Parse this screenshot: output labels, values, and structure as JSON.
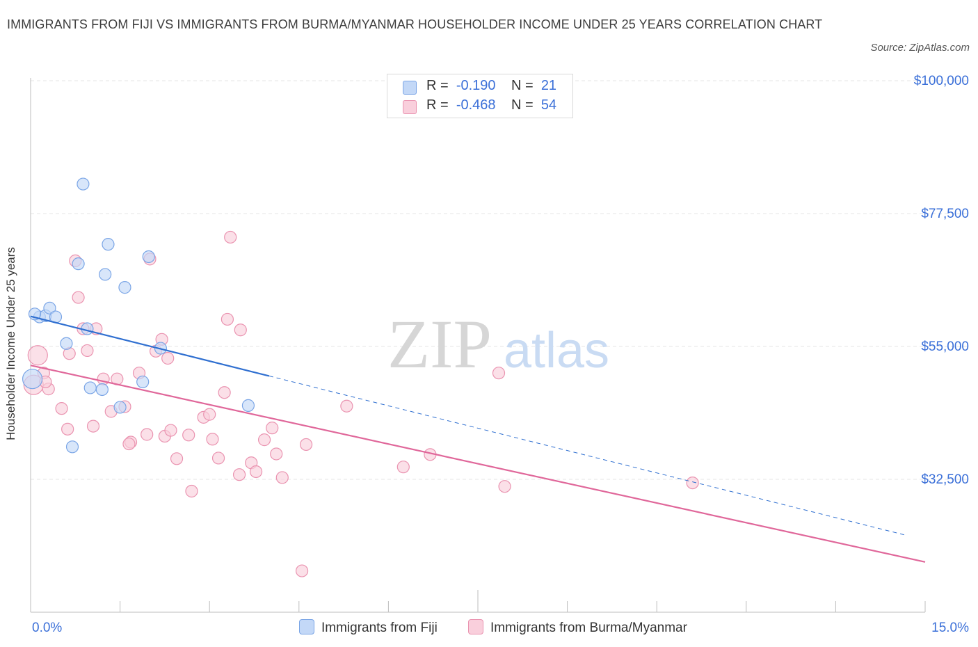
{
  "title": "IMMIGRANTS FROM FIJI VS IMMIGRANTS FROM BURMA/MYANMAR HOUSEHOLDER INCOME UNDER 25 YEARS CORRELATION CHART",
  "source": "Source: ZipAtlas.com",
  "watermark": {
    "zip": "ZIP",
    "atlas": "atlas"
  },
  "legend": {
    "r_label": "R =",
    "n_label": "N =",
    "series": [
      {
        "r_value": "-0.190",
        "n_value": "21"
      },
      {
        "r_value": "-0.468",
        "n_value": "54"
      }
    ]
  },
  "colors": {
    "fiji_fill": "#c3d8f7",
    "fiji_stroke": "#7aa5e6",
    "fiji_line": "#2f6fd0",
    "burma_fill": "#f9cfdc",
    "burma_stroke": "#ea93b0",
    "burma_line": "#e0679a",
    "axis_text": "#3a6fd8",
    "grid": "#e4e4e4"
  },
  "chart_data": {
    "type": "scatter",
    "title": "IMMIGRANTS FROM FIJI VS IMMIGRANTS FROM BURMA/MYANMAR HOUSEHOLDER INCOME UNDER 25 YEARS CORRELATION CHART",
    "xlabel": "",
    "ylabel": "Householder Income Under 25 years",
    "xlim": [
      0,
      15
    ],
    "ylim": [
      12000,
      104000
    ],
    "x_tick_labels": [
      "0.0%",
      "15.0%"
    ],
    "y_ticks": [
      {
        "value": 32500,
        "label": "$32,500"
      },
      {
        "value": 55000,
        "label": "$55,000"
      },
      {
        "value": 77500,
        "label": "$77,500"
      },
      {
        "value": 100000,
        "label": "$100,000"
      }
    ],
    "grid": true,
    "legend_position": "bottom",
    "series": [
      {
        "name": "Immigrants from Fiji",
        "r": -0.19,
        "n": 21,
        "trend": {
          "x0": 0,
          "y0": 60100,
          "x1": 4.0,
          "y1": 50000,
          "dash_x1": 14.7
        },
        "points": [
          [
            0.03,
            49500
          ],
          [
            0.15,
            60000
          ],
          [
            0.25,
            60200
          ],
          [
            0.32,
            61500
          ],
          [
            0.42,
            60000
          ],
          [
            0.6,
            55500
          ],
          [
            0.7,
            38000
          ],
          [
            0.8,
            69000
          ],
          [
            0.88,
            82500
          ],
          [
            0.95,
            58000
          ],
          [
            1.0,
            48000
          ],
          [
            1.2,
            47700
          ],
          [
            1.25,
            67200
          ],
          [
            1.3,
            72300
          ],
          [
            1.5,
            44700
          ],
          [
            1.58,
            65000
          ],
          [
            1.88,
            49000
          ],
          [
            1.98,
            70200
          ],
          [
            2.18,
            54700
          ],
          [
            3.65,
            45000
          ],
          [
            0.07,
            60500
          ]
        ]
      },
      {
        "name": "Immigrants from Burma/Myanmar",
        "r": -0.468,
        "n": 54,
        "trend": {
          "x0": 0,
          "y0": 51800,
          "x1": 15.0,
          "y1": 18500
        },
        "points": [
          [
            0.05,
            48500
          ],
          [
            0.12,
            53500
          ],
          [
            0.22,
            50500
          ],
          [
            0.3,
            47800
          ],
          [
            0.52,
            44500
          ],
          [
            0.62,
            41000
          ],
          [
            0.65,
            53800
          ],
          [
            0.75,
            69500
          ],
          [
            0.8,
            63300
          ],
          [
            0.88,
            58000
          ],
          [
            0.95,
            54300
          ],
          [
            1.05,
            41500
          ],
          [
            1.1,
            58000
          ],
          [
            1.22,
            49500
          ],
          [
            1.35,
            44000
          ],
          [
            1.45,
            49500
          ],
          [
            1.58,
            44800
          ],
          [
            1.68,
            38800
          ],
          [
            1.82,
            50500
          ],
          [
            1.95,
            40100
          ],
          [
            2.0,
            69800
          ],
          [
            2.1,
            54200
          ],
          [
            2.2,
            56200
          ],
          [
            2.25,
            39800
          ],
          [
            2.3,
            53000
          ],
          [
            2.35,
            40800
          ],
          [
            2.45,
            36000
          ],
          [
            2.65,
            40000
          ],
          [
            2.7,
            30500
          ],
          [
            2.9,
            43000
          ],
          [
            3.0,
            43500
          ],
          [
            3.05,
            39300
          ],
          [
            3.15,
            36100
          ],
          [
            3.25,
            47200
          ],
          [
            3.3,
            59600
          ],
          [
            3.35,
            73500
          ],
          [
            3.5,
            33300
          ],
          [
            3.52,
            57800
          ],
          [
            3.7,
            35300
          ],
          [
            3.78,
            33800
          ],
          [
            3.92,
            39200
          ],
          [
            4.05,
            41200
          ],
          [
            4.12,
            36800
          ],
          [
            4.22,
            32800
          ],
          [
            4.62,
            38400
          ],
          [
            4.55,
            17000
          ],
          [
            5.3,
            44900
          ],
          [
            6.25,
            34600
          ],
          [
            6.7,
            36700
          ],
          [
            7.85,
            50500
          ],
          [
            7.95,
            31300
          ],
          [
            11.1,
            31900
          ],
          [
            0.25,
            49000
          ],
          [
            1.65,
            38500
          ]
        ]
      }
    ]
  }
}
